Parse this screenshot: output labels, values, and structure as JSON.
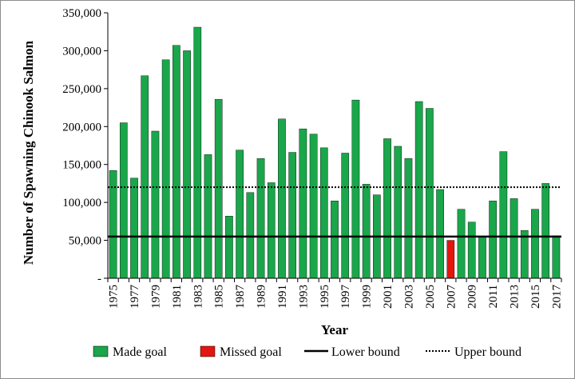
{
  "chart_data": {
    "type": "bar",
    "xlabel": "Year",
    "ylabel": "Number of Spawning Chinook Salmon",
    "ylim": [
      0,
      350000
    ],
    "y_ticks": [
      0,
      50000,
      100000,
      150000,
      200000,
      250000,
      300000,
      350000
    ],
    "y_tick_labels": [
      "-",
      "50,000",
      "100,000",
      "150,000",
      "200,000",
      "250,000",
      "300,000",
      "350,000"
    ],
    "categories": [
      "1975",
      "1976",
      "1977",
      "1978",
      "1979",
      "1980",
      "1981",
      "1982",
      "1983",
      "1984",
      "1985",
      "1986",
      "1987",
      "1988",
      "1989",
      "1990",
      "1991",
      "1992",
      "1993",
      "1994",
      "1995",
      "1996",
      "1997",
      "1998",
      "1999",
      "2000",
      "2001",
      "2002",
      "2003",
      "2004",
      "2005",
      "2006",
      "2007",
      "2008",
      "2009",
      "2010",
      "2011",
      "2012",
      "2013",
      "2014",
      "2015",
      "2016",
      "2017"
    ],
    "x_tick_labels": [
      "1975",
      "1977",
      "1979",
      "1981",
      "1983",
      "1985",
      "1987",
      "1989",
      "1991",
      "1993",
      "1995",
      "1997",
      "1999",
      "2001",
      "2003",
      "2005",
      "2007",
      "2009",
      "2011",
      "2013",
      "2015",
      "2017"
    ],
    "values": [
      142000,
      205000,
      132000,
      267000,
      194000,
      288000,
      307000,
      300000,
      331000,
      163000,
      236000,
      82000,
      169000,
      113000,
      158000,
      126000,
      210000,
      166000,
      197000,
      190000,
      172000,
      102000,
      165000,
      235000,
      124000,
      110000,
      184000,
      174000,
      158000,
      233000,
      224000,
      117000,
      50000,
      91000,
      74000,
      55000,
      102000,
      167000,
      105000,
      63000,
      91000,
      125000,
      56000
    ],
    "status": [
      "made",
      "made",
      "made",
      "made",
      "made",
      "made",
      "made",
      "made",
      "made",
      "made",
      "made",
      "made",
      "made",
      "made",
      "made",
      "made",
      "made",
      "made",
      "made",
      "made",
      "made",
      "made",
      "made",
      "made",
      "made",
      "made",
      "made",
      "made",
      "made",
      "made",
      "made",
      "made",
      "missed",
      "made",
      "made",
      "made",
      "made",
      "made",
      "made",
      "made",
      "made",
      "made",
      "made"
    ],
    "lower_bound": 55000,
    "upper_bound": 120000,
    "colors": {
      "made": "#1aa64a",
      "missed": "#e3160f",
      "lower_bound": "#000000",
      "upper_bound": "#000000"
    },
    "grid": false,
    "legend_position": "bottom",
    "legend": [
      {
        "label": "Made goal",
        "kind": "made"
      },
      {
        "label": "Missed goal",
        "kind": "missed"
      },
      {
        "label": "Lower bound",
        "kind": "lower_bound"
      },
      {
        "label": "Upper bound",
        "kind": "upper_bound"
      }
    ]
  }
}
